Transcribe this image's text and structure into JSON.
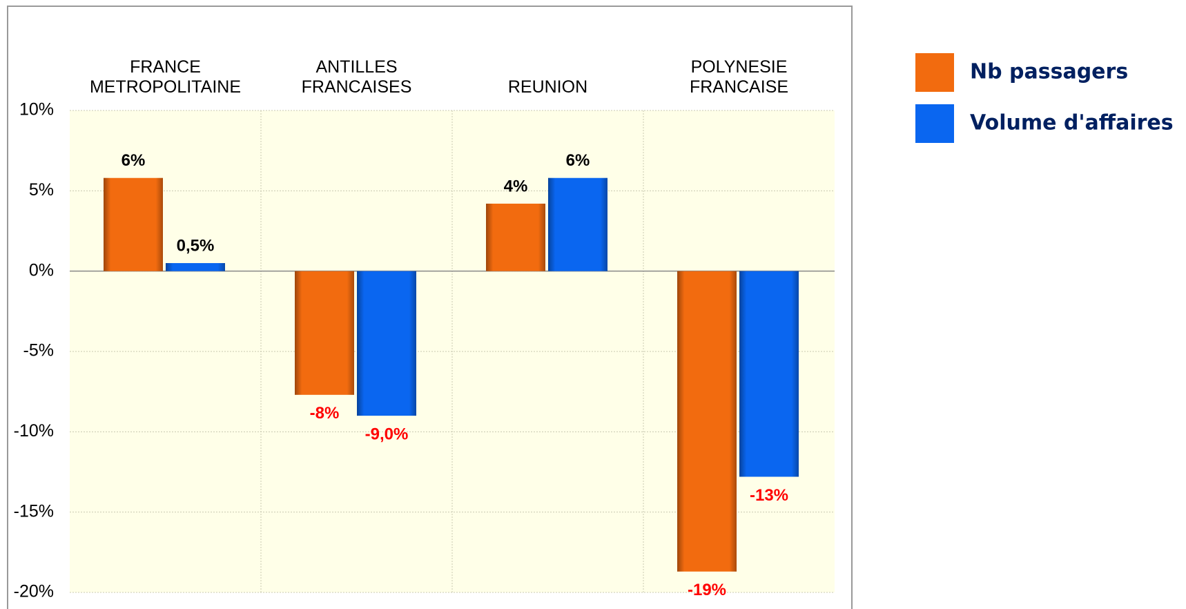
{
  "chart_data": {
    "type": "bar",
    "categories": [
      "FRANCE\nMETROPOLITAINE",
      "ANTILLES\nFRANCAISES",
      "REUNION",
      "POLYNESIE\nFRANCAISE"
    ],
    "series": [
      {
        "name": "Nb passagers",
        "color": "#f26b0f",
        "values": [
          5.8,
          -7.7,
          4.2,
          -18.7
        ],
        "value_labels": [
          "6%",
          "-8%",
          "4%",
          "-19%"
        ]
      },
      {
        "name": "Volume d'affaires",
        "color": "#0a66f0",
        "values": [
          0.5,
          -9.0,
          5.8,
          -12.8
        ],
        "value_labels": [
          "0,5%",
          "-9,0%",
          "6%",
          "-13%"
        ]
      }
    ],
    "ylim": [
      -20,
      10
    ],
    "yticks": [
      {
        "value": -20,
        "label": "-20%"
      },
      {
        "value": -15,
        "label": "-15%"
      },
      {
        "value": -10,
        "label": "-10%"
      },
      {
        "value": -5,
        "label": "-5%"
      },
      {
        "value": 0,
        "label": "0%"
      },
      {
        "value": 5,
        "label": "5%"
      },
      {
        "value": 10,
        "label": "10%"
      }
    ],
    "grid": true,
    "legend": "right"
  }
}
